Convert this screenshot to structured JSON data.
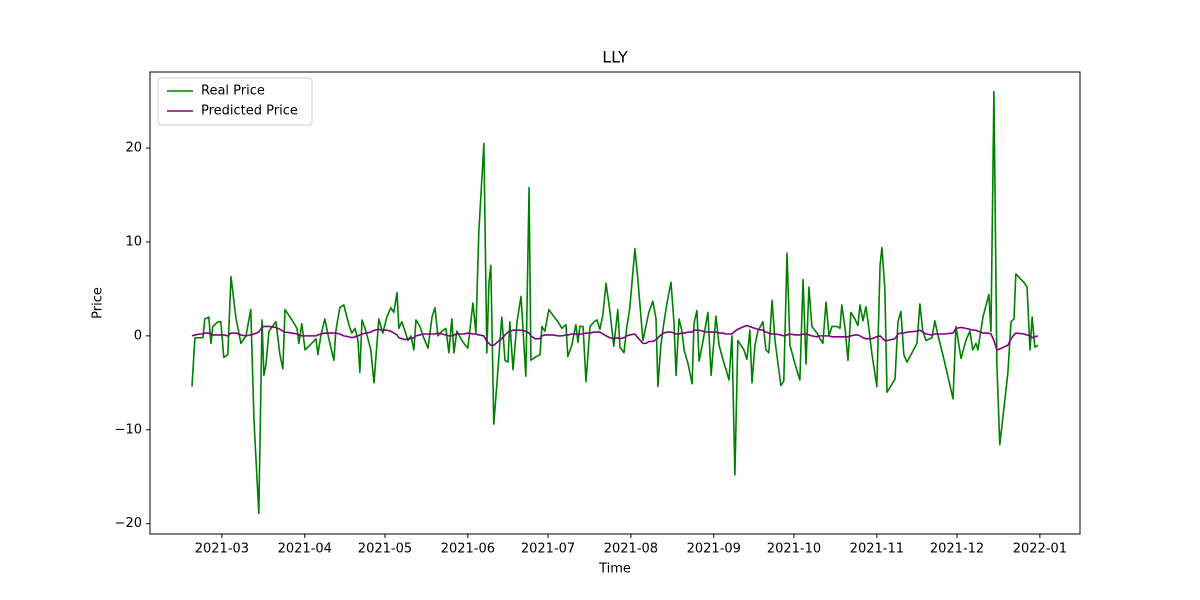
{
  "chart_data": {
    "type": "line",
    "title": "LLY",
    "x_label": "Time",
    "y_label": "Price",
    "x": [
      47.8,
      48.9,
      50.8,
      51.9,
      52.6,
      54.1,
      54.9,
      55.6,
      57.5,
      58.6,
      59.7,
      61.2,
      62.4,
      64.2,
      66.1,
      68.0,
      69.8,
      71.0,
      72.8,
      74.0,
      74.7,
      75.5,
      76.6,
      79.2,
      80.7,
      81.8,
      82.6,
      85.2,
      87.1,
      87.8,
      88.9,
      90.1,
      91.9,
      94.2,
      94.9,
      96.0,
      97.5,
      99.0,
      100.9,
      101.6,
      103.1,
      104.6,
      106.5,
      107.6,
      108.8,
      109.9,
      110.6,
      111.4,
      112.9,
      114.7,
      115.9,
      117.7,
      119.2,
      120.7,
      122.2,
      123.3,
      124.5,
      125.2,
      126.3,
      127.5,
      128.6,
      129.7,
      130.8,
      131.6,
      133.1,
      134.2,
      136.1,
      137.6,
      138.7,
      139.8,
      141.3,
      142.8,
      143.9,
      145.0,
      145.8,
      146.9,
      148.4,
      149.5,
      151.0,
      152.9,
      154.0,
      155.1,
      157.0,
      158.1,
      158.9,
      159.6,
      160.7,
      161.9,
      163.7,
      164.9,
      166.0,
      166.7,
      167.9,
      169.4,
      170.9,
      172.7,
      173.9,
      174.6,
      176.1,
      178.0,
      178.7,
      179.8,
      181.3,
      182.8,
      184.7,
      186.2,
      187.7,
      188.4,
      189.9,
      191.4,
      192.2,
      192.9,
      194.1,
      195.2,
      196.7,
      198.2,
      199.3,
      200.4,
      201.5,
      202.7,
      204.2,
      205.6,
      207.1,
      207.9,
      209.4,
      210.5,
      211.6,
      213.5,
      214.6,
      216.5,
      217.6,
      218.7,
      220.2,
      221.4,
      222.1,
      223.2,
      224.4,
      225.5,
      227.0,
      228.1,
      228.9,
      230.0,
      231.1,
      231.9,
      233.4,
      234.9,
      235.6,
      236.7,
      237.5,
      239.0,
      240.8,
      242.0,
      243.8,
      245.0,
      246.4,
      247.5,
      248.7,
      249.8,
      250.9,
      252.0,
      254.3,
      255.4,
      256.5,
      257.3,
      258.4,
      259.5,
      261.4,
      262.5,
      263.6,
      264.8,
      265.9,
      268.1,
      269.2,
      270.4,
      271.5,
      273.4,
      275.2,
      276.4,
      277.5,
      278.6,
      279.7,
      281.6,
      282.7,
      283.8,
      285.0,
      286.1,
      287.2,
      289.1,
      290.2,
      290.9,
      292.1,
      293.2,
      294.3,
      295.8,
      296.9,
      297.7,
      298.8,
      299.9,
      300.7,
      302.2,
      304.0,
      305.2,
      305.9,
      307.0,
      307.8,
      310.8,
      311.9,
      313.0,
      314.1,
      315.3,
      319.0,
      320.1,
      321.2,
      322.4,
      324.6,
      325.7,
      326.9,
      328.0,
      329.1,
      332.5,
      333.6,
      335.5,
      337.3,
      338.8,
      339.9,
      341.1,
      341.8,
      343.7,
      345.9,
      346.7,
      347.8,
      348.9,
      350.0,
      353.0,
      354.2,
      355.3,
      356.0,
      359.0,
      360.2,
      361.3,
      362.1,
      363.1,
      364.3
    ],
    "series": [
      {
        "name": "Real Price",
        "color": "#008000",
        "values": [
          -5.4,
          -0.2,
          -0.2,
          -0.2,
          1.8,
          2,
          -0.8,
          1,
          1.5,
          1.5,
          -2.3,
          -2,
          6.3,
          2,
          -0.8,
          0,
          2.8,
          -9,
          -18.9,
          1.7,
          -4.2,
          -3,
          0.5,
          1.5,
          -2,
          -3.5,
          2.8,
          1.7,
          0.8,
          -0.8,
          1.3,
          -1.5,
          -1,
          -0.3,
          -2,
          0,
          1.8,
          -0.3,
          -2.6,
          0.5,
          3,
          3.3,
          1.2,
          0.3,
          0.8,
          -0.5,
          -3.9,
          1.7,
          0.5,
          -1.5,
          -5,
          1.8,
          0.3,
          2,
          3,
          2.5,
          4.6,
          0.8,
          1.5,
          0.5,
          -0.5,
          0,
          -1.5,
          1.7,
          1,
          0,
          -1.3,
          2,
          3,
          0,
          0.5,
          0.8,
          -1.8,
          1.8,
          -1.8,
          0.5,
          -0.3,
          -0.8,
          -1.3,
          3.5,
          0.3,
          11,
          20.5,
          -1.8,
          5.7,
          7.5,
          -9.4,
          -5,
          2,
          -2.6,
          -2.8,
          1.5,
          -3.6,
          1.5,
          4.2,
          -4.3,
          15.8,
          -2.6,
          -2.3,
          -2,
          1,
          0.5,
          2.8,
          2.2,
          1.5,
          0.8,
          1.2,
          -2.2,
          -1,
          1.2,
          -0.7,
          1,
          1,
          -4.9,
          1,
          1.5,
          1.7,
          0.7,
          2.2,
          5.6,
          2.5,
          -1.1,
          2.8,
          -1.2,
          -1.8,
          1,
          3,
          9.3,
          6,
          -0.5,
          1,
          2.5,
          3.7,
          1.8,
          -5.4,
          -1,
          1.5,
          3.5,
          5.7,
          1.5,
          -4.2,
          1.8,
          0.5,
          -1.5,
          -3,
          -5.1,
          1.3,
          2.7,
          -2.7,
          -0.5,
          2.5,
          -4.2,
          2.1,
          -1,
          -2.5,
          -3.5,
          -4.7,
          0,
          -14.8,
          -0.5,
          -1.5,
          -2.5,
          0.6,
          -5,
          -1,
          0.5,
          1.5,
          -1.5,
          -1.8,
          3.8,
          -0.5,
          -5.3,
          -4.8,
          8.8,
          -1,
          -3,
          -4.7,
          6,
          -3,
          5.2,
          1,
          0.3,
          -0.3,
          -0.8,
          3.6,
          0,
          1,
          1,
          0.8,
          3.3,
          0.8,
          -2.6,
          2.5,
          1.8,
          1.1,
          3.3,
          1.6,
          3.1,
          1.5,
          -2,
          -5.4,
          7.5,
          9.4,
          5,
          -6,
          -4.6,
          1.5,
          2.6,
          -2,
          -2.8,
          -0.8,
          3.4,
          0.5,
          -0.5,
          -0.2,
          1.6,
          0,
          -1.2,
          -2.5,
          -6.7,
          1,
          -2.4,
          -0.5,
          0.5,
          -1.5,
          -0.8,
          -1.5,
          2,
          4.4,
          0.5,
          26,
          -3,
          -11.6,
          -4,
          1.5,
          1.8,
          6.6,
          5.7,
          5.2,
          -1.5,
          2,
          -1.2,
          -1
        ]
      },
      {
        "name": "Predicted Price",
        "color": "#800080",
        "values": [
          0,
          0.1,
          0.2,
          0.2,
          0.3,
          0.3,
          0.2,
          0.1,
          0.1,
          0.1,
          0.1,
          0,
          0.3,
          0.3,
          0.1,
          0,
          0.1,
          0.2,
          0.4,
          0.9,
          1,
          1,
          1,
          0.9,
          0.7,
          0.5,
          0.4,
          0.3,
          0.2,
          0.1,
          0,
          0,
          0,
          0,
          0.1,
          0.2,
          0.3,
          0.3,
          0.3,
          0.3,
          0.2,
          0,
          -0.1,
          -0.2,
          -0.1,
          0,
          0.1,
          0.2,
          0.3,
          0.4,
          0.6,
          0.7,
          0.6,
          0.6,
          0.5,
          0.3,
          0.1,
          -0.2,
          -0.3,
          -0.4,
          -0.3,
          -0.3,
          -0.2,
          0,
          0.1,
          0.2,
          0.2,
          0.2,
          0.2,
          0.3,
          0.2,
          0.1,
          0,
          0,
          0.1,
          0.2,
          0.2,
          0.2,
          0.3,
          0.2,
          0.2,
          0.1,
          0,
          -0.6,
          -0.8,
          -1,
          -1,
          -0.7,
          -0.3,
          0.1,
          0.4,
          0.5,
          0.6,
          0.6,
          0.6,
          0.5,
          0.3,
          0,
          -0.3,
          -0.3,
          0,
          0.1,
          0.1,
          0.1,
          0,
          0,
          0.1,
          0.1,
          0.2,
          0.2,
          0.2,
          0.2,
          0.2,
          0.3,
          0.3,
          0.4,
          0.4,
          0.4,
          0.2,
          0,
          -0.2,
          -0.3,
          -0.2,
          -0.3,
          -0.2,
          0,
          0.1,
          0.2,
          -0.2,
          -0.8,
          -0.8,
          -0.6,
          -0.6,
          -0.4,
          -0.2,
          0.1,
          0.3,
          0.4,
          0.4,
          0.3,
          0.2,
          0.2,
          0.3,
          0.3,
          0.4,
          0.4,
          0.6,
          0.6,
          0.6,
          0.5,
          0.4,
          0.4,
          0.4,
          0.3,
          0.3,
          0.2,
          0.2,
          0.2,
          0.5,
          0.7,
          1,
          1.1,
          1,
          0.9,
          0.8,
          0.7,
          0.6,
          0.4,
          0.3,
          0.2,
          0.2,
          0.1,
          0,
          0.1,
          0.2,
          0.1,
          0.1,
          0.2,
          0.2,
          0.1,
          0,
          -0.1,
          0,
          0,
          0,
          0,
          -0.1,
          -0.1,
          -0.1,
          -0.1,
          -0.1,
          -0.1,
          0,
          0.1,
          0.1,
          0,
          -0.2,
          -0.3,
          -0.3,
          -0.3,
          -0.1,
          0,
          -0.2,
          -0.5,
          -0.5,
          -0.3,
          0.2,
          0.3,
          0.3,
          0.4,
          0.5,
          0.6,
          0.4,
          0.2,
          0.1,
          0.2,
          0.2,
          0.2,
          0.2,
          0.3,
          0.8,
          0.9,
          0.8,
          0.7,
          0.6,
          0.6,
          0.5,
          0.3,
          0.3,
          0.2,
          -0.5,
          -1.5,
          -1.4,
          -1,
          -0.3,
          0.1,
          0.3,
          0.2,
          0.1,
          0,
          -0.2,
          -0.1,
          0
        ]
      }
    ],
    "xlim": [
      32.1,
      380.0
    ],
    "xticks": [
      {
        "value": 59,
        "label": "2021-03"
      },
      {
        "value": 90,
        "label": "2021-04"
      },
      {
        "value": 120,
        "label": "2021-05"
      },
      {
        "value": 151,
        "label": "2021-06"
      },
      {
        "value": 181,
        "label": "2021-07"
      },
      {
        "value": 212,
        "label": "2021-08"
      },
      {
        "value": 243,
        "label": "2021-09"
      },
      {
        "value": 273,
        "label": "2021-10"
      },
      {
        "value": 304,
        "label": "2021-11"
      },
      {
        "value": 334,
        "label": "2021-12"
      },
      {
        "value": 365,
        "label": "2022-01"
      }
    ],
    "ylim": [
      -21.1,
      28.1
    ],
    "yticks": [
      {
        "value": -20,
        "label": "−20"
      },
      {
        "value": -10,
        "label": "−10"
      },
      0,
      10,
      20
    ],
    "grid": false,
    "legend": "upper-left"
  }
}
